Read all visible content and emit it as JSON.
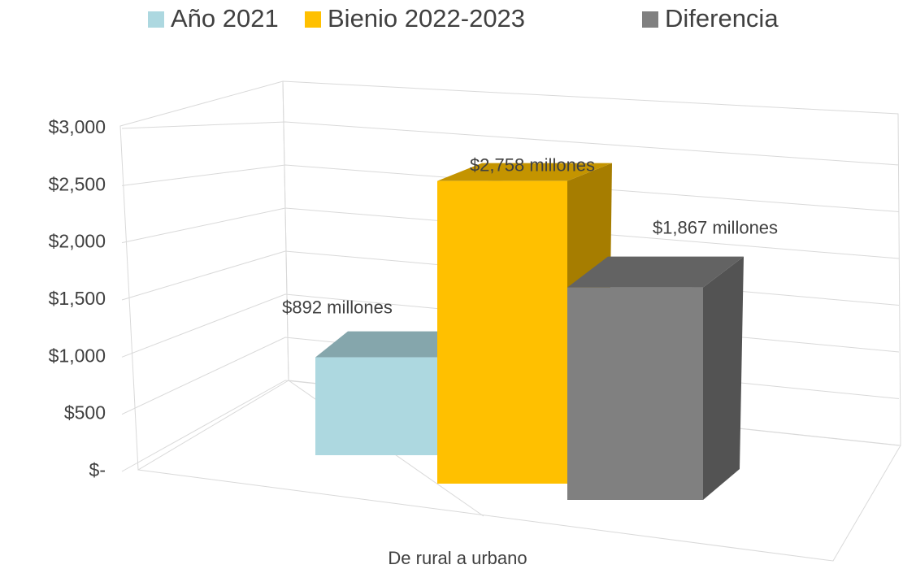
{
  "chart_data": {
    "type": "bar3d",
    "categories": [
      "De rural a urbano"
    ],
    "series": [
      {
        "name": "Año 2021",
        "color": "#add8e0",
        "values": [
          892
        ],
        "value_labels": [
          "$892 millones"
        ]
      },
      {
        "name": "Bienio 2022-2023",
        "color": "#ffc000",
        "values": [
          2758
        ],
        "value_labels": [
          "$2,758 millones"
        ]
      },
      {
        "name": "Diferencia",
        "color": "#808080",
        "values": [
          1867
        ],
        "value_labels": [
          "$1,867 millones"
        ]
      }
    ],
    "ylim": [
      0,
      3000
    ],
    "yticks": [
      {
        "value": 0,
        "label": "$-"
      },
      {
        "value": 500,
        "label": "$500"
      },
      {
        "value": 1000,
        "label": "$1,000"
      },
      {
        "value": 1500,
        "label": "$1,500"
      },
      {
        "value": 2000,
        "label": "$2,000"
      },
      {
        "value": 2500,
        "label": "$2,500"
      },
      {
        "value": 3000,
        "label": "$3,000"
      }
    ],
    "grid": true,
    "legend": "top"
  }
}
